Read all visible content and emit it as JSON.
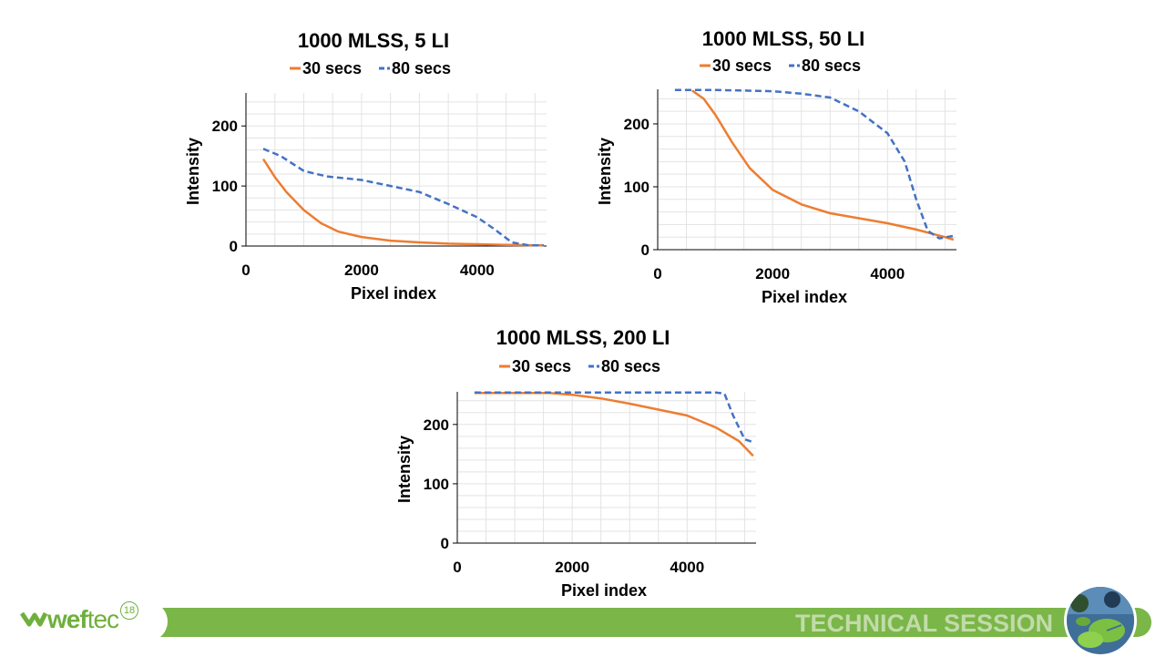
{
  "chart_data": [
    {
      "type": "line",
      "title": "1000 MLSS, 5 LI",
      "xlabel": "Pixel index",
      "ylabel": "Intensity",
      "xlim": [
        0,
        5200
      ],
      "ylim": [
        0,
        255
      ],
      "xticks": [
        0,
        2000,
        4000
      ],
      "yticks": [
        0,
        100,
        200
      ],
      "grid": true,
      "legend": "top",
      "series": [
        {
          "name": "30 secs",
          "color": "#ed7d31",
          "style": "solid",
          "x": [
            300,
            500,
            700,
            1000,
            1300,
            1600,
            2000,
            2500,
            3000,
            3500,
            4000,
            4500,
            5000,
            5150
          ],
          "y": [
            145,
            115,
            90,
            60,
            38,
            24,
            15,
            9,
            6,
            4,
            3,
            2,
            1,
            1
          ]
        },
        {
          "name": "80 secs",
          "color": "#4472c4",
          "style": "dashed",
          "x": [
            300,
            600,
            1000,
            1400,
            2000,
            2500,
            3000,
            3500,
            4000,
            4300,
            4600,
            4900,
            5150
          ],
          "y": [
            162,
            150,
            125,
            116,
            110,
            100,
            90,
            70,
            48,
            28,
            6,
            1,
            1
          ]
        }
      ]
    },
    {
      "type": "line",
      "title": "1000 MLSS, 50 LI",
      "xlabel": "Pixel index",
      "ylabel": "Intensity",
      "xlim": [
        0,
        5200
      ],
      "ylim": [
        0,
        255
      ],
      "xticks": [
        0,
        2000,
        4000
      ],
      "yticks": [
        0,
        100,
        200
      ],
      "grid": true,
      "legend": "top",
      "series": [
        {
          "name": "30 secs",
          "color": "#ed7d31",
          "style": "solid",
          "x": [
            600,
            800,
            1000,
            1300,
            1600,
            2000,
            2500,
            3000,
            3500,
            4000,
            4500,
            5000,
            5150
          ],
          "y": [
            253,
            240,
            215,
            170,
            130,
            95,
            72,
            58,
            50,
            42,
            32,
            20,
            16
          ]
        },
        {
          "name": "80 secs",
          "color": "#4472c4",
          "style": "dashed",
          "x": [
            300,
            1000,
            2000,
            2500,
            3000,
            3500,
            4000,
            4300,
            4500,
            4700,
            4900,
            5150
          ],
          "y": [
            254,
            254,
            252,
            248,
            242,
            220,
            185,
            140,
            80,
            30,
            18,
            22
          ]
        }
      ]
    },
    {
      "type": "line",
      "title": "1000 MLSS, 200 LI",
      "xlabel": "Pixel index",
      "ylabel": "Intensity",
      "xlim": [
        0,
        5200
      ],
      "ylim": [
        0,
        255
      ],
      "xticks": [
        0,
        2000,
        4000
      ],
      "yticks": [
        0,
        100,
        200
      ],
      "grid": true,
      "legend": "top",
      "series": [
        {
          "name": "30 secs",
          "color": "#ed7d31",
          "style": "solid",
          "x": [
            300,
            1000,
            1600,
            2000,
            2500,
            3000,
            3500,
            4000,
            4500,
            4900,
            5150
          ],
          "y": [
            253,
            253,
            253,
            250,
            244,
            235,
            225,
            215,
            195,
            172,
            147
          ]
        },
        {
          "name": "80 secs",
          "color": "#4472c4",
          "style": "dashed",
          "x": [
            300,
            1000,
            2000,
            3000,
            4000,
            4500,
            4650,
            4800,
            5000,
            5150
          ],
          "y": [
            254,
            254,
            254,
            254,
            254,
            254,
            252,
            215,
            175,
            170
          ]
        }
      ]
    }
  ],
  "footer": {
    "brand_main": "wef",
    "brand_thin": "tec",
    "brand_year": "18",
    "session_label": "TECHNICAL SESSION",
    "accent_color": "#7ab648"
  }
}
